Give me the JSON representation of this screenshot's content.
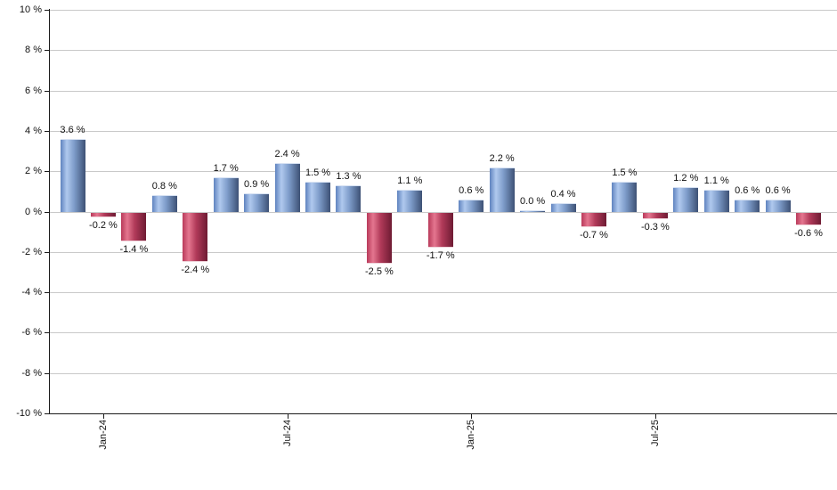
{
  "chart_data": {
    "type": "bar",
    "title": "",
    "xlabel": "",
    "ylabel": "",
    "values": [
      3.6,
      -0.2,
      -1.4,
      0.8,
      -2.4,
      1.7,
      0.9,
      2.4,
      1.5,
      1.3,
      -2.5,
      1.1,
      -1.7,
      0.6,
      2.2,
      0.0,
      0.4,
      -0.7,
      1.5,
      -0.3,
      1.2,
      1.1,
      0.6,
      0.6,
      -0.6
    ],
    "bar_labels": [
      "3.6 %",
      "-0.2 %",
      "-1.4 %",
      "0.8 %",
      "-2.4 %",
      "1.7 %",
      "0.9 %",
      "2.4 %",
      "1.5 %",
      "1.3 %",
      "-2.5 %",
      "1.1 %",
      "-1.7 %",
      "0.6 %",
      "2.2 %",
      "0.0 %",
      "0.4 %",
      "-0.7 %",
      "1.5 %",
      "-0.3 %",
      "1.2 %",
      "1.1 %",
      "0.6 %",
      "0.6 %",
      "-0.6 %"
    ],
    "x_axis": {
      "tick_labels": [
        "Jan-24",
        "Jul-24",
        "Jan-25",
        "Jul-25"
      ],
      "tick_bar_indices": [
        1,
        7,
        13,
        19
      ]
    },
    "y_axis": {
      "min": -10,
      "max": 10,
      "step": 2,
      "tick_labels": [
        "10 %",
        "8 %",
        "6 %",
        "4 %",
        "2 %",
        "0 %",
        "-2 %",
        "-4 %",
        "-6 %",
        "-8 %",
        "-10 %"
      ]
    },
    "grid": true,
    "legend": false,
    "colors": {
      "positive_gradient": [
        "#5f83bf",
        "#b0c9ee",
        "#7e9cca",
        "#3d5175"
      ],
      "negative_gradient": [
        "#b93a5a",
        "#e4768f",
        "#b13a59",
        "#6e1b33"
      ],
      "gridline": "#c9c9c9",
      "axis": "#1a1a1a",
      "label": "#111111",
      "background": "#ffffff"
    }
  }
}
